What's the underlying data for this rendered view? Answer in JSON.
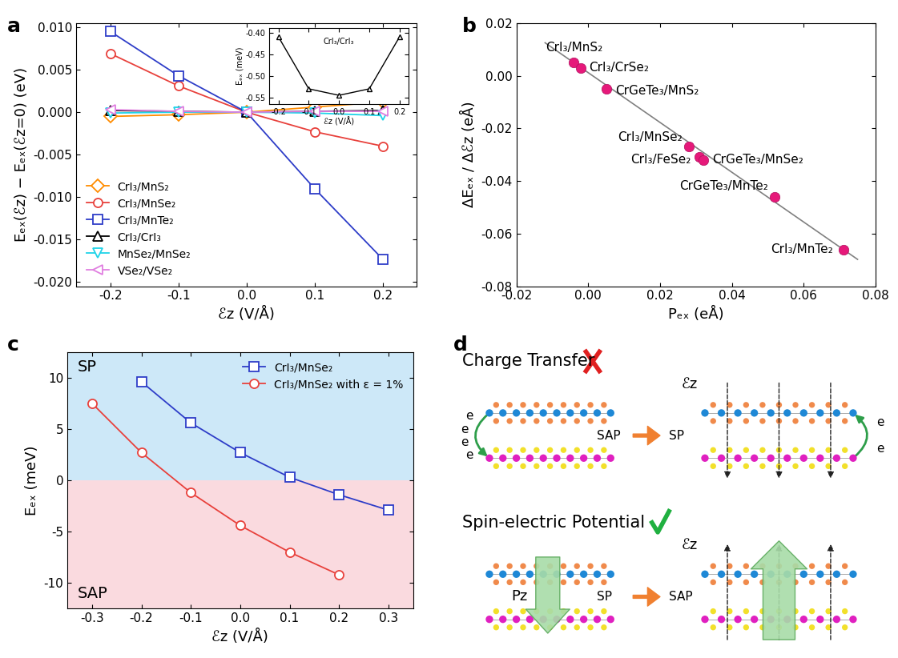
{
  "chart_data": [
    {
      "panel_label": "a",
      "type": "line",
      "x": [
        -0.2,
        -0.1,
        0.0,
        0.1,
        0.2
      ],
      "x_label": "ℰz (V/Å)",
      "y_label": "Eₑₓ(ℰz) − Eₑₓ(ℰz=0) (eV)",
      "xlim": [
        -0.25,
        0.25
      ],
      "xticks": [
        -0.2,
        -0.1,
        0.0,
        0.1,
        0.2
      ],
      "ylim": [
        -0.0205,
        0.0105
      ],
      "yticks": [
        {
          "value": -0.02,
          "label": "-0.020"
        },
        {
          "value": -0.015,
          "label": "-0.015"
        },
        {
          "value": -0.01,
          "label": "-0.010"
        },
        {
          "value": -0.005,
          "label": "-0.005"
        },
        {
          "value": 0,
          "label": "0.000"
        },
        {
          "value": 0.005,
          "label": "0.005"
        },
        {
          "value": 0.01,
          "label": "0.010"
        }
      ],
      "legend": "lower left",
      "series": [
        {
          "name": "CrI₃/MnS₂",
          "color": "#FF8C00",
          "marker": "diamond",
          "values": [
            -0.0005,
            -0.0003,
            0.0,
            0.0006,
            0.0012
          ]
        },
        {
          "name": "CrI₃/MnSe₂",
          "color": "#E8413C",
          "marker": "circle",
          "values": [
            0.0069,
            0.0031,
            0.0,
            -0.0023,
            -0.004
          ]
        },
        {
          "name": "CrI₃/MnTe₂",
          "color": "#2E3DC8",
          "marker": "square",
          "values": [
            0.0095,
            0.0043,
            0.0,
            -0.009,
            -0.0173
          ]
        },
        {
          "name": "CrI₃/CrI₃",
          "color": "#000000",
          "marker": "triangle_up",
          "values": [
            0.0002,
            0.0001,
            0.0,
            0.0001,
            0.0002
          ]
        },
        {
          "name": "MnSe₂/MnSe₂",
          "color": "#1FD3E8",
          "marker": "triangle_down",
          "values": [
            -0.0001,
            0.0,
            0.0,
            -0.0001,
            -0.0004
          ]
        },
        {
          "name": "VSe₂/VSe₂",
          "color": "#E07FE0",
          "marker": "triangle_left",
          "values": [
            0.0003,
            0.0001,
            0.0,
            0.0001,
            0.0001
          ]
        }
      ],
      "inset": {
        "type": "line",
        "title": "CrI₃/CrI₃",
        "x": [
          -0.2,
          -0.1,
          0.0,
          0.1,
          0.2
        ],
        "values": [
          -0.41,
          -0.53,
          -0.545,
          -0.53,
          -0.41
        ],
        "color": "#000000",
        "marker": "triangle_up",
        "x_label": "ℰz (V/Å)",
        "y_label": "Eₑₓ (meV)",
        "xlim": [
          -0.23,
          0.23
        ],
        "xticks": [
          -0.2,
          -0.1,
          0.0,
          0.1,
          0.2
        ],
        "ylim": [
          -0.565,
          -0.39
        ],
        "yticks": [
          -0.55,
          {
            "value": -0.5,
            "label": "-0.50"
          },
          -0.45,
          {
            "value": -0.4,
            "label": "-0.40"
          }
        ]
      }
    },
    {
      "panel_label": "b",
      "type": "scatter",
      "x_label": "Pₑₓ (eÅ)",
      "y_label": "ΔEₑₓ / Δℰz (eÅ)",
      "x": [
        -0.004,
        -0.002,
        0.005,
        0.028,
        0.031,
        0.032,
        0.052,
        0.071
      ],
      "values": [
        0.005,
        0.003,
        -0.005,
        -0.027,
        -0.031,
        -0.032,
        -0.046,
        -0.066
      ],
      "point_labels": [
        "CrI₃/MnS₂",
        "CrI₃/CrSe₂",
        "CrGeTe₃/MnS₂",
        "CrI₃/MnSe₂",
        "CrI₃/FeSe₂",
        "CrGeTe₃/MnSe₂",
        "CrGeTe₃/MnTe₂",
        "CrI₃/MnTe₂"
      ],
      "color": "#E6197A",
      "fit_line": {
        "x": [
          -0.012,
          0.075
        ],
        "values": [
          0.0125,
          -0.0698
        ],
        "color": "#808080"
      },
      "xlim": [
        -0.02,
        0.08
      ],
      "xticks": [
        -0.02,
        {
          "value": 0,
          "label": "0.00"
        },
        0.02,
        0.04,
        0.06,
        0.08
      ],
      "ylim": [
        -0.08,
        0.02
      ],
      "yticks": [
        -0.08,
        -0.06,
        -0.04,
        -0.02,
        {
          "value": 0,
          "label": "0.00"
        },
        0.02
      ]
    },
    {
      "panel_label": "c",
      "type": "line",
      "x_label": "ℰz (V/Å)",
      "y_label": "Eₑₓ (meV)",
      "xlim": [
        -0.35,
        0.35
      ],
      "xticks": [
        -0.3,
        -0.2,
        -0.1,
        0.0,
        0.1,
        0.2,
        0.3
      ],
      "ylim": [
        -12.5,
        12.5
      ],
      "yticks": [
        -10,
        -5,
        0,
        5,
        10
      ],
      "legend": "upper right",
      "regions": [
        {
          "label": "SP",
          "from": 0,
          "to": 12.5,
          "color": "#CDE8F8"
        },
        {
          "label": "SAP",
          "from": -12.5,
          "to": 0,
          "color": "#FADADF"
        }
      ],
      "series": [
        {
          "name": "CrI₃/MnSe₂",
          "color": "#2E3DC8",
          "marker": "square",
          "x": [
            -0.2,
            -0.1,
            0.0,
            0.1,
            0.2,
            0.3
          ],
          "values": [
            9.6,
            5.6,
            2.7,
            0.3,
            -1.4,
            -2.9
          ]
        },
        {
          "name": "CrI₃/MnSe₂ with ε = 1%",
          "color": "#E8413C",
          "marker": "circle",
          "x": [
            -0.3,
            -0.2,
            -0.1,
            0.0,
            0.1,
            0.2
          ],
          "values": [
            7.5,
            2.7,
            -1.2,
            -4.4,
            -7.0,
            -9.2
          ]
        }
      ]
    }
  ],
  "diagram": {
    "panel_label": "d",
    "rows": [
      {
        "title": "Charge Transfer",
        "left_state": "SAP",
        "right_state": "SP",
        "field": "ℰz",
        "electrons_left": [
          "e",
          "e",
          "e",
          "e"
        ],
        "electrons_right": [
          "e",
          "e"
        ]
      },
      {
        "title": "Spin-electric Potential",
        "left_state": "SP",
        "right_state": "SAP",
        "field": "ℰz",
        "polarization": "Pz"
      }
    ]
  }
}
